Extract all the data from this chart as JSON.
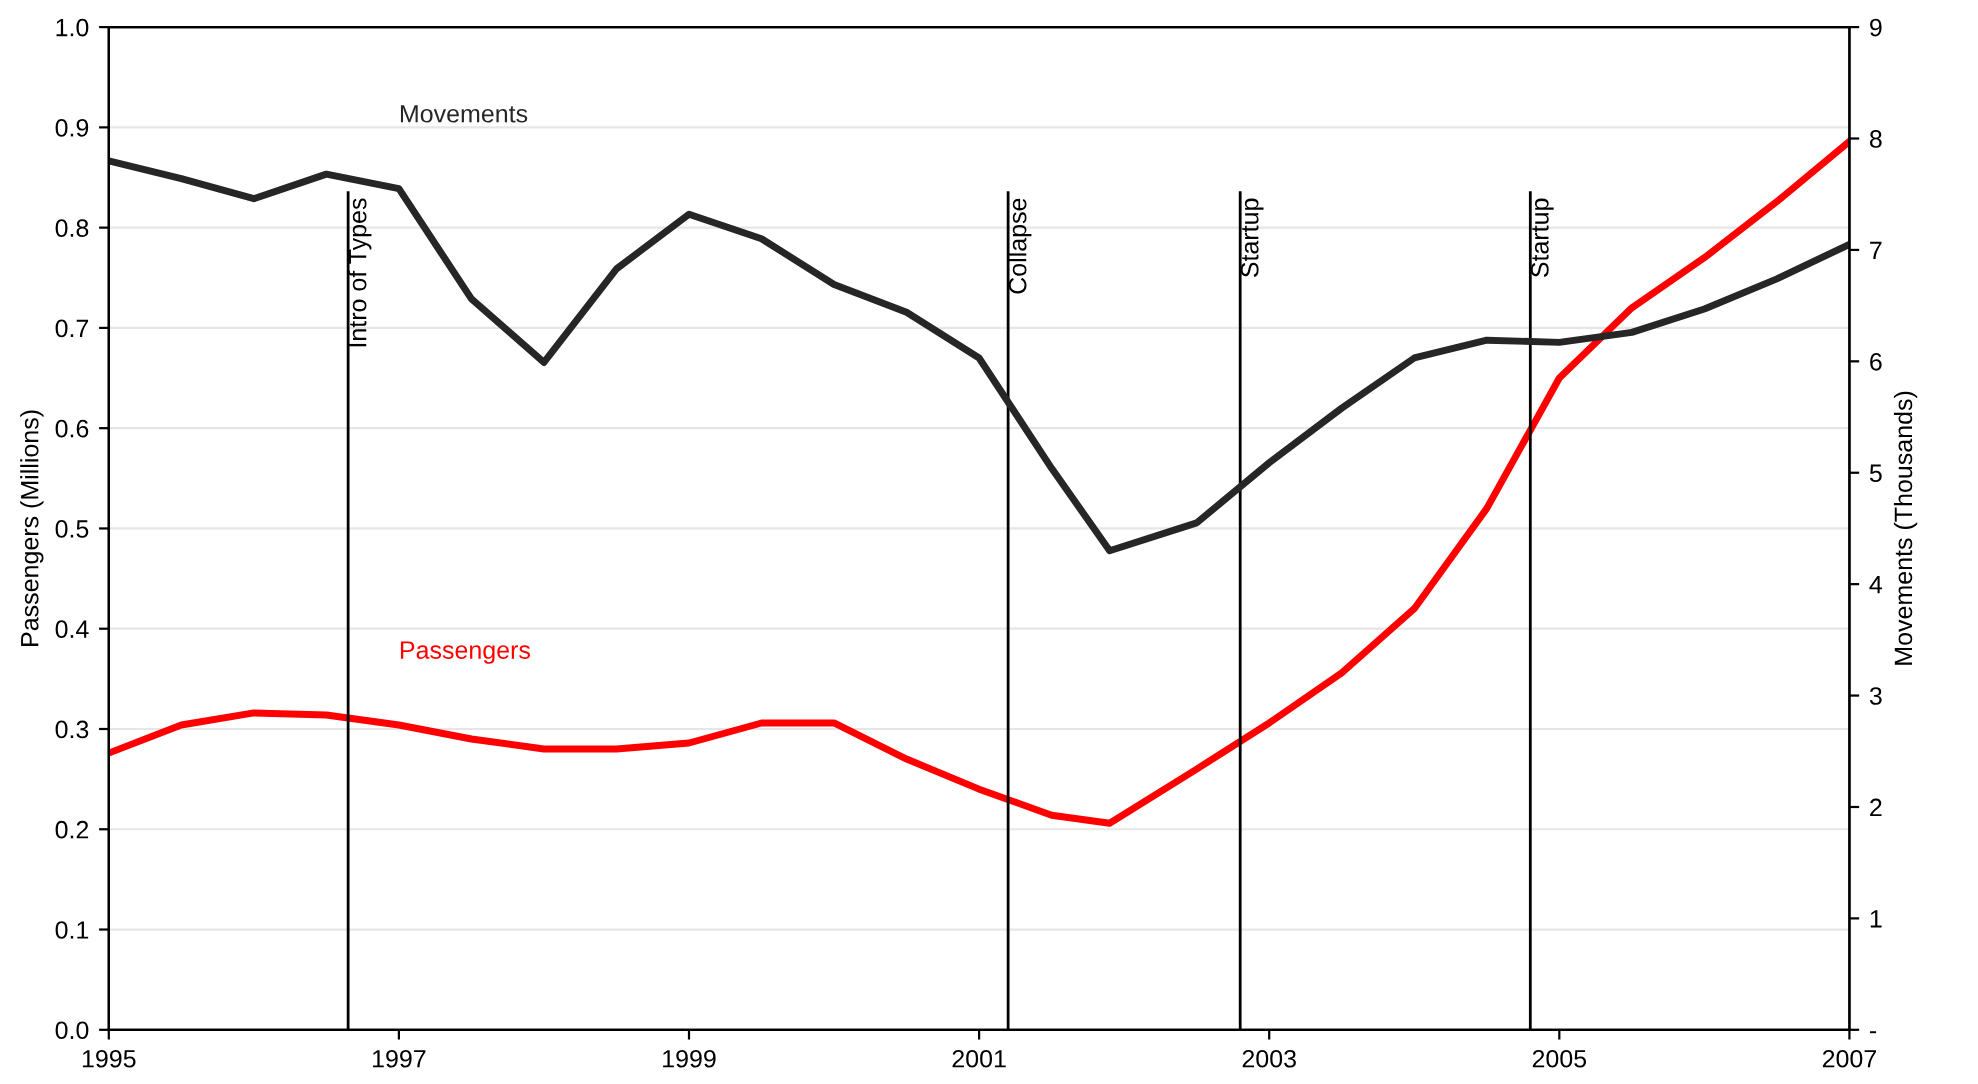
{
  "chart_data": {
    "type": "line",
    "x": [
      1995,
      1995.5,
      1996,
      1996.5,
      1997,
      1997.5,
      1998,
      1998.5,
      1999,
      1999.5,
      2000,
      2000.5,
      2001,
      2001.5,
      2001.9,
      2002.5,
      2003,
      2003.5,
      2004,
      2004.5,
      2005,
      2005.5,
      2006,
      2006.5,
      2007
    ],
    "series": [
      {
        "name": "Passengers",
        "color": "#ff0000",
        "values": [
          0.276,
          0.304,
          0.316,
          0.314,
          0.304,
          0.29,
          0.28,
          0.28,
          0.286,
          0.306,
          0.306,
          0.27,
          0.24,
          0.214,
          0.206,
          0.26,
          0.306,
          0.356,
          0.42,
          0.52,
          0.65,
          0.72,
          0.77,
          0.826,
          0.886
        ]
      },
      {
        "name": "Movements",
        "color": "#262626",
        "axis": "y2",
        "values": [
          7.8,
          7.64,
          7.46,
          7.68,
          7.55,
          6.56,
          5.99,
          6.83,
          7.32,
          7.1,
          6.69,
          6.44,
          6.03,
          5.04,
          4.3,
          4.55,
          5.09,
          5.58,
          6.03,
          6.19,
          6.17,
          6.26,
          6.47,
          6.74,
          7.05
        ]
      }
    ],
    "xlim": [
      1995,
      2007
    ],
    "xticks": [
      1995,
      1997,
      1999,
      2001,
      2003,
      2005,
      2007
    ],
    "ylim": [
      0,
      1.0
    ],
    "yticks": [
      {
        "value": 0,
        "label": "0.0"
      },
      0.1,
      0.2,
      0.3,
      0.4,
      0.5,
      0.6,
      0.7,
      0.8,
      0.9,
      {
        "value": 1,
        "label": "1.0"
      }
    ],
    "y2lim": [
      0,
      9
    ],
    "y2ticks": [
      {
        "value": 0,
        "label": "-"
      },
      1,
      2,
      3,
      4,
      5,
      6,
      7,
      8,
      9
    ],
    "ylabel": "Passengers (Millions)",
    "y2label": "Movements (Thousands)",
    "ref_lines": [
      {
        "axis": "x",
        "value": 1996.65,
        "label": "Intro of Types",
        "color": "#000000"
      },
      {
        "axis": "x",
        "value": 2001.2,
        "label": "Collapse",
        "color": "#000000"
      },
      {
        "axis": "x",
        "value": 2002.8,
        "label": "Startup",
        "color": "#000000"
      },
      {
        "axis": "x",
        "value": 2004.8,
        "label": "Startup",
        "color": "#000000"
      }
    ],
    "grid": "y",
    "legend": false,
    "marker": "none",
    "line_style": "solid"
  }
}
